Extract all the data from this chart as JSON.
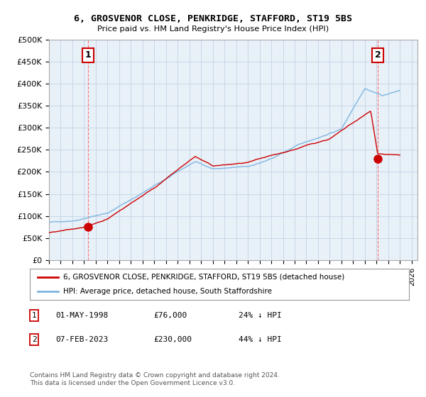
{
  "title": "6, GROSVENOR CLOSE, PENKRIDGE, STAFFORD, ST19 5BS",
  "subtitle": "Price paid vs. HM Land Registry's House Price Index (HPI)",
  "ylabel_ticks": [
    "£0",
    "£50K",
    "£100K",
    "£150K",
    "£200K",
    "£250K",
    "£300K",
    "£350K",
    "£400K",
    "£450K",
    "£500K"
  ],
  "ylim": [
    0,
    500000
  ],
  "xlim_start": 1995.0,
  "xlim_end": 2026.5,
  "hpi_color": "#7EB6E0",
  "price_color": "#CC0000",
  "point1_year": 1998.33,
  "point1_price": 76000,
  "point2_year": 2023.1,
  "point2_price": 230000,
  "legend_line1": "6, GROSVENOR CLOSE, PENKRIDGE, STAFFORD, ST19 5BS (detached house)",
  "legend_line2": "HPI: Average price, detached house, South Staffordshire",
  "footnote": "Contains HM Land Registry data © Crown copyright and database right 2024.\nThis data is licensed under the Open Government Licence v3.0.",
  "vline1_year": 1998.33,
  "vline2_year": 2023.1,
  "background_color": "#FFFFFF",
  "chart_bg_color": "#E8F0F8",
  "grid_color": "#C8D8E8"
}
